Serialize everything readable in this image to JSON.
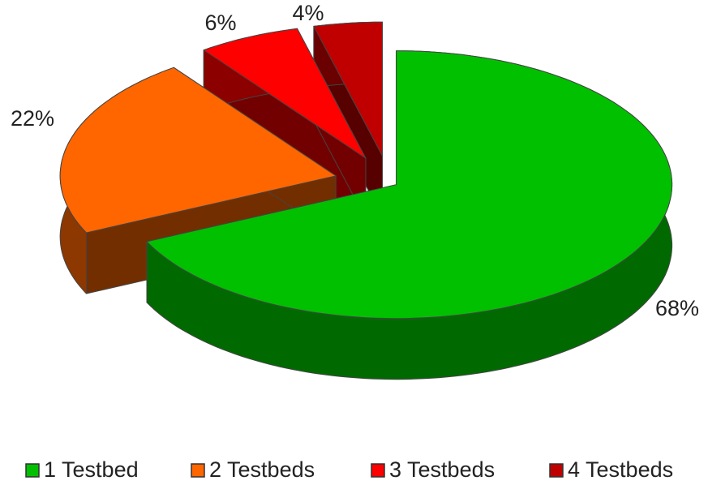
{
  "chart_data": {
    "type": "pie3d",
    "categories": [
      "1 Testbed",
      "2 Testbeds",
      "3 Testbeds",
      "4 Testbeds"
    ],
    "values": [
      68,
      22,
      6,
      4
    ],
    "value_labels": [
      "68%",
      "22%",
      "6%",
      "4%"
    ],
    "colors": [
      "#00c000",
      "#ff6600",
      "#ff0000",
      "#c00000"
    ],
    "legend": "bottom"
  }
}
